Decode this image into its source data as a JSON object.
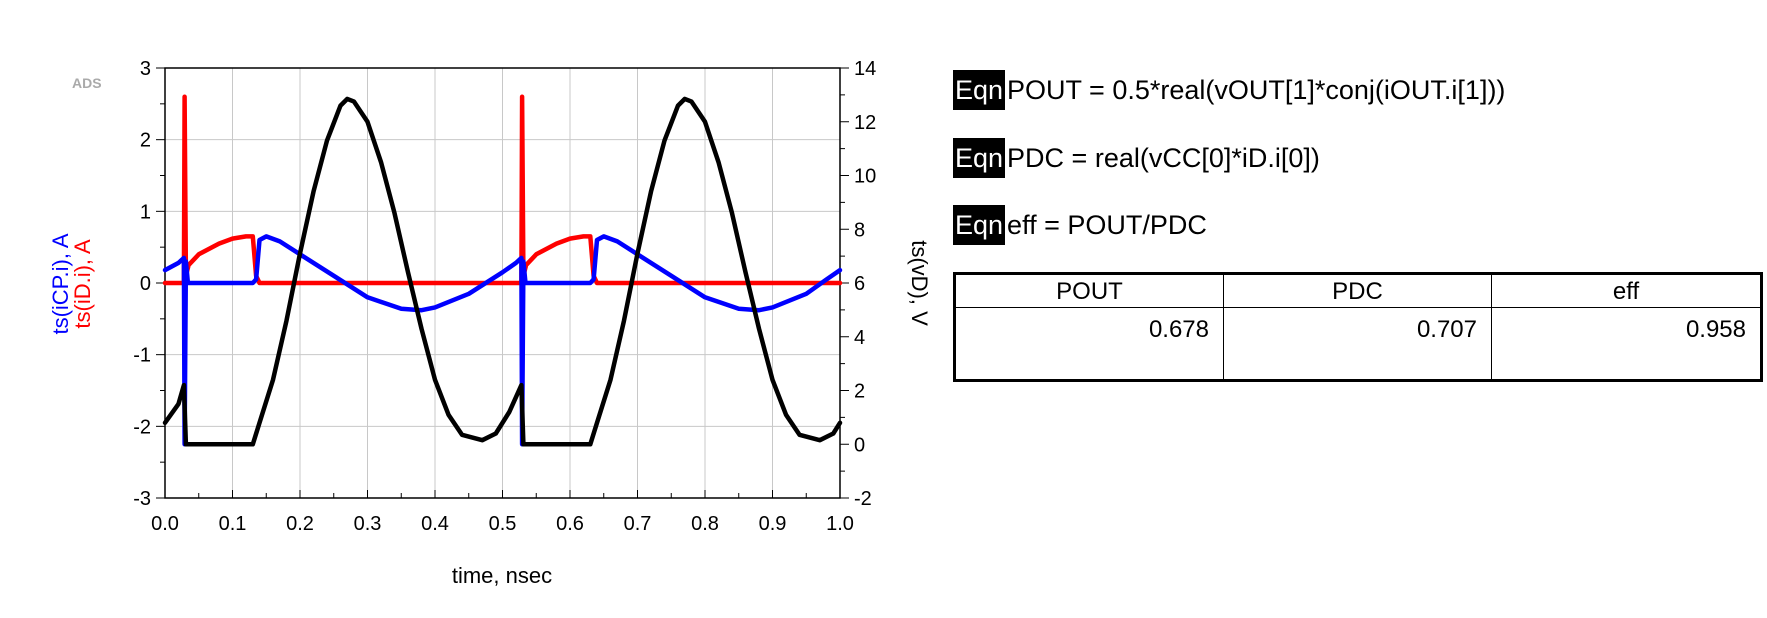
{
  "chart_data": {
    "type": "line",
    "watermark": "ADS",
    "xlabel": "time, nsec",
    "xlim": [
      0.0,
      1.0
    ],
    "xticks": [
      "0.0",
      "0.1",
      "0.2",
      "0.3",
      "0.4",
      "0.5",
      "0.6",
      "0.7",
      "0.8",
      "0.9",
      "1.0"
    ],
    "y_left": {
      "labels": [
        {
          "text": "ts(iCP.i), A",
          "color": "#0000ff"
        },
        {
          "text": "ts(iD.i), A",
          "color": "#ff0000"
        }
      ],
      "ylim": [
        -3,
        3
      ],
      "ticks": [
        "-3",
        "-2",
        "-1",
        "0",
        "1",
        "2",
        "3"
      ]
    },
    "y_right": {
      "label": "ts(vD), V",
      "color": "#000000",
      "ylim": [
        -2,
        14
      ],
      "ticks": [
        "-2",
        "0",
        "2",
        "4",
        "6",
        "8",
        "10",
        "12",
        "14"
      ]
    },
    "grid": true,
    "series": [
      {
        "name": "ts(vD), V",
        "axis": "right",
        "color": "#000000",
        "points": [
          [
            0.0,
            0.8
          ],
          [
            0.02,
            1.5
          ],
          [
            0.028,
            2.2
          ],
          [
            0.031,
            0.0
          ],
          [
            0.05,
            0.0
          ],
          [
            0.1,
            0.0
          ],
          [
            0.13,
            0.0
          ],
          [
            0.14,
            0.8
          ],
          [
            0.16,
            2.4
          ],
          [
            0.18,
            4.6
          ],
          [
            0.2,
            7.1
          ],
          [
            0.22,
            9.4
          ],
          [
            0.24,
            11.3
          ],
          [
            0.26,
            12.6
          ],
          [
            0.27,
            12.85
          ],
          [
            0.28,
            12.75
          ],
          [
            0.3,
            12.0
          ],
          [
            0.32,
            10.5
          ],
          [
            0.34,
            8.6
          ],
          [
            0.36,
            6.4
          ],
          [
            0.38,
            4.3
          ],
          [
            0.4,
            2.4
          ],
          [
            0.42,
            1.1
          ],
          [
            0.44,
            0.35
          ],
          [
            0.47,
            0.15
          ],
          [
            0.49,
            0.4
          ],
          [
            0.51,
            1.2
          ],
          [
            0.528,
            2.2
          ],
          [
            0.531,
            0.0
          ],
          [
            0.55,
            0.0
          ],
          [
            0.6,
            0.0
          ],
          [
            0.63,
            0.0
          ],
          [
            0.64,
            0.8
          ],
          [
            0.66,
            2.4
          ],
          [
            0.68,
            4.6
          ],
          [
            0.7,
            7.1
          ],
          [
            0.72,
            9.4
          ],
          [
            0.74,
            11.3
          ],
          [
            0.76,
            12.6
          ],
          [
            0.77,
            12.85
          ],
          [
            0.78,
            12.75
          ],
          [
            0.8,
            12.0
          ],
          [
            0.82,
            10.5
          ],
          [
            0.84,
            8.6
          ],
          [
            0.86,
            6.4
          ],
          [
            0.88,
            4.3
          ],
          [
            0.9,
            2.4
          ],
          [
            0.92,
            1.1
          ],
          [
            0.94,
            0.35
          ],
          [
            0.97,
            0.15
          ],
          [
            0.99,
            0.4
          ],
          [
            1.0,
            0.8
          ]
        ]
      },
      {
        "name": "ts(iCP.i), A",
        "axis": "left",
        "color": "#0000ff",
        "points": [
          [
            0.0,
            0.18
          ],
          [
            0.02,
            0.28
          ],
          [
            0.028,
            0.35
          ],
          [
            0.029,
            -2.25
          ],
          [
            0.031,
            0.3
          ],
          [
            0.034,
            0.0
          ],
          [
            0.06,
            0.0
          ],
          [
            0.1,
            0.0
          ],
          [
            0.13,
            0.0
          ],
          [
            0.135,
            0.05
          ],
          [
            0.14,
            0.6
          ],
          [
            0.15,
            0.65
          ],
          [
            0.17,
            0.58
          ],
          [
            0.2,
            0.4
          ],
          [
            0.25,
            0.1
          ],
          [
            0.3,
            -0.2
          ],
          [
            0.35,
            -0.36
          ],
          [
            0.38,
            -0.38
          ],
          [
            0.4,
            -0.34
          ],
          [
            0.45,
            -0.15
          ],
          [
            0.5,
            0.15
          ],
          [
            0.52,
            0.28
          ],
          [
            0.528,
            0.35
          ],
          [
            0.529,
            -2.25
          ],
          [
            0.531,
            0.3
          ],
          [
            0.534,
            0.0
          ],
          [
            0.56,
            0.0
          ],
          [
            0.6,
            0.0
          ],
          [
            0.63,
            0.0
          ],
          [
            0.635,
            0.05
          ],
          [
            0.64,
            0.6
          ],
          [
            0.65,
            0.65
          ],
          [
            0.67,
            0.58
          ],
          [
            0.7,
            0.4
          ],
          [
            0.75,
            0.1
          ],
          [
            0.8,
            -0.2
          ],
          [
            0.85,
            -0.36
          ],
          [
            0.88,
            -0.38
          ],
          [
            0.9,
            -0.34
          ],
          [
            0.95,
            -0.15
          ],
          [
            0.98,
            0.05
          ],
          [
            1.0,
            0.18
          ]
        ]
      },
      {
        "name": "ts(iD.i), A",
        "axis": "left",
        "color": "#ff0000",
        "points": [
          [
            0.0,
            0.0
          ],
          [
            0.025,
            0.0
          ],
          [
            0.028,
            0.0
          ],
          [
            0.029,
            2.6
          ],
          [
            0.031,
            0.1
          ],
          [
            0.035,
            0.25
          ],
          [
            0.05,
            0.4
          ],
          [
            0.08,
            0.55
          ],
          [
            0.1,
            0.62
          ],
          [
            0.12,
            0.65
          ],
          [
            0.13,
            0.65
          ],
          [
            0.135,
            0.1
          ],
          [
            0.14,
            0.0
          ],
          [
            0.2,
            0.0
          ],
          [
            0.3,
            0.0
          ],
          [
            0.4,
            0.0
          ],
          [
            0.5,
            0.0
          ],
          [
            0.525,
            0.0
          ],
          [
            0.528,
            0.0
          ],
          [
            0.529,
            2.6
          ],
          [
            0.531,
            0.1
          ],
          [
            0.535,
            0.25
          ],
          [
            0.55,
            0.4
          ],
          [
            0.58,
            0.55
          ],
          [
            0.6,
            0.62
          ],
          [
            0.62,
            0.65
          ],
          [
            0.63,
            0.65
          ],
          [
            0.635,
            0.1
          ],
          [
            0.64,
            0.0
          ],
          [
            0.7,
            0.0
          ],
          [
            0.8,
            0.0
          ],
          [
            0.9,
            0.0
          ],
          [
            1.0,
            0.0
          ]
        ]
      }
    ]
  },
  "equations": [
    {
      "tag": "Eqn",
      "text": "POUT = 0.5*real(vOUT[1]*conj(iOUT.i[1]))"
    },
    {
      "tag": "Eqn",
      "text": "PDC = real(vCC[0]*iD.i[0])"
    },
    {
      "tag": "Eqn",
      "text": "eff = POUT/PDC"
    }
  ],
  "results_table": {
    "headers": [
      "POUT",
      "PDC",
      "eff"
    ],
    "values": [
      "0.678",
      "0.707",
      "0.958"
    ]
  }
}
